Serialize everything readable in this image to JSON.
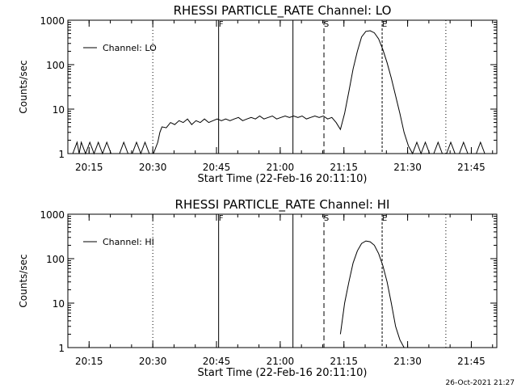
{
  "chart_data": [
    {
      "type": "line",
      "title": "RHESSI PARTICLE_RATE Channel: LO",
      "xlabel": "Start Time (22-Feb-16 20:11:10)",
      "ylabel": "Counts/sec",
      "yscale": "log",
      "ylim": [
        1,
        1000
      ],
      "xlim": [
        "20:10:00",
        "21:51:00"
      ],
      "x_ticks": [
        "20:15",
        "20:30",
        "20:45",
        "21:00",
        "21:15",
        "21:30",
        "21:45"
      ],
      "y_ticks": [
        "1",
        "10",
        "100",
        "1000"
      ],
      "legend": "top-left",
      "series": [
        {
          "name": "Channel: LO",
          "x_minutes_after_start": [
            0,
            1,
            1.5,
            2,
            3,
            4,
            5,
            6,
            7,
            8,
            9,
            10,
            11,
            12,
            13,
            14,
            15,
            16,
            17,
            18,
            19,
            20,
            20.5,
            21,
            22,
            23,
            24,
            25,
            26,
            27,
            28,
            29,
            30,
            31,
            32,
            33,
            34,
            35,
            36,
            37,
            38,
            39,
            40,
            41,
            42,
            43,
            44,
            45,
            46,
            47,
            48,
            49,
            50,
            51,
            52,
            53,
            54,
            55,
            56,
            57,
            58,
            59,
            60,
            61,
            62,
            63,
            64,
            65,
            66,
            67,
            68,
            69,
            70,
            71,
            72,
            73,
            74,
            75,
            76,
            77,
            78,
            79,
            80,
            81,
            82,
            83,
            84,
            85,
            86,
            87,
            88,
            89,
            90,
            91,
            92,
            93,
            94,
            95,
            96,
            97,
            98
          ],
          "values": [
            1,
            1.8,
            1,
            1.8,
            1,
            1.8,
            1,
            1.8,
            1,
            1.8,
            1,
            1,
            1,
            1.8,
            1,
            1,
            1.8,
            1,
            1.8,
            1,
            1,
            1.8,
            3,
            4,
            3.8,
            5,
            4.5,
            5.5,
            5,
            6,
            4.5,
            5.5,
            5,
            6,
            5,
            5.5,
            6,
            5.5,
            6,
            5.5,
            6,
            6.5,
            5.5,
            6,
            6.5,
            6,
            7,
            6,
            6.5,
            7,
            6,
            6.5,
            7,
            6.5,
            7,
            6.5,
            7,
            6,
            6.5,
            7,
            6.5,
            7,
            6,
            6.5,
            5,
            3.5,
            8,
            25,
            80,
            200,
            420,
            560,
            580,
            520,
            380,
            220,
            110,
            50,
            20,
            8,
            3,
            1.5,
            1,
            1.8,
            1,
            1.8,
            1,
            1,
            1.8,
            1,
            1,
            1.8,
            1,
            1,
            1.8,
            1,
            1,
            1,
            1.8,
            1,
            1
          ]
        }
      ],
      "events": [
        {
          "label": "F"
        },
        {
          "label": "S"
        },
        {
          "label": "E"
        }
      ]
    },
    {
      "type": "line",
      "title": "RHESSI PARTICLE_RATE Channel: HI",
      "xlabel": "Start Time (22-Feb-16 20:11:10)",
      "ylabel": "Counts/sec",
      "yscale": "log",
      "ylim": [
        1,
        1000
      ],
      "xlim": [
        "20:10:00",
        "21:51:00"
      ],
      "x_ticks": [
        "20:15",
        "20:30",
        "20:45",
        "21:00",
        "21:15",
        "21:30",
        "21:45"
      ],
      "y_ticks": [
        "1",
        "10",
        "100",
        "1000"
      ],
      "legend": "top-left",
      "series": [
        {
          "name": "Channel: HI",
          "x_minutes_after_start": [
            63,
            64,
            65,
            66,
            67,
            68,
            69,
            70,
            71,
            72,
            73,
            74,
            75,
            76,
            77,
            78
          ],
          "values": [
            2,
            10,
            30,
            80,
            150,
            220,
            250,
            240,
            200,
            130,
            70,
            30,
            10,
            3,
            1.5,
            1
          ]
        }
      ],
      "events": [
        {
          "label": "F"
        },
        {
          "label": "S"
        },
        {
          "label": "E"
        }
      ]
    }
  ],
  "footer": {
    "timestamp": "26-Oct-2021 21:27"
  }
}
